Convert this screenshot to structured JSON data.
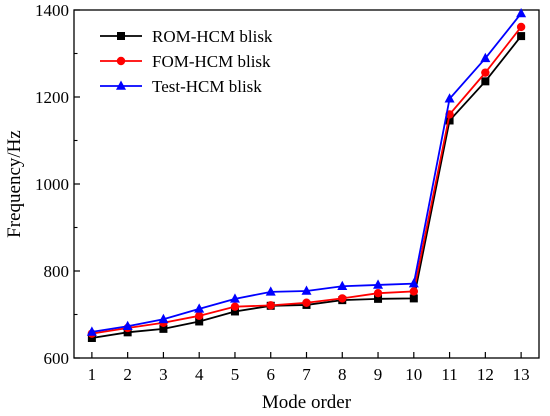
{
  "chart_data": {
    "type": "line",
    "xlabel": "Mode order",
    "ylabel": "Frequency/Hz",
    "x": [
      1,
      2,
      3,
      4,
      5,
      6,
      7,
      8,
      9,
      10,
      11,
      12,
      13
    ],
    "xlim": [
      0.5,
      13.5
    ],
    "ylim": [
      600,
      1400
    ],
    "yticks": [
      600,
      800,
      1000,
      1200,
      1400
    ],
    "legend_position": "top-left",
    "grid": false,
    "series": [
      {
        "name": "ROM-HCM blisk",
        "color": "#000000",
        "marker": "square",
        "values": [
          646,
          659,
          667,
          684,
          707,
          720,
          722,
          733,
          736,
          737,
          1146,
          1236,
          1340
        ]
      },
      {
        "name": "FOM-HCM blisk",
        "color": "#ff0000",
        "marker": "circle",
        "values": [
          656,
          669,
          681,
          697,
          718,
          721,
          727,
          737,
          749,
          753,
          1160,
          1256,
          1361
        ]
      },
      {
        "name": "Test-HCM blisk",
        "color": "#0000ff",
        "marker": "triangle",
        "values": [
          660,
          673,
          689,
          713,
          736,
          752,
          754,
          765,
          768,
          771,
          1196,
          1289,
          1392
        ]
      }
    ]
  }
}
